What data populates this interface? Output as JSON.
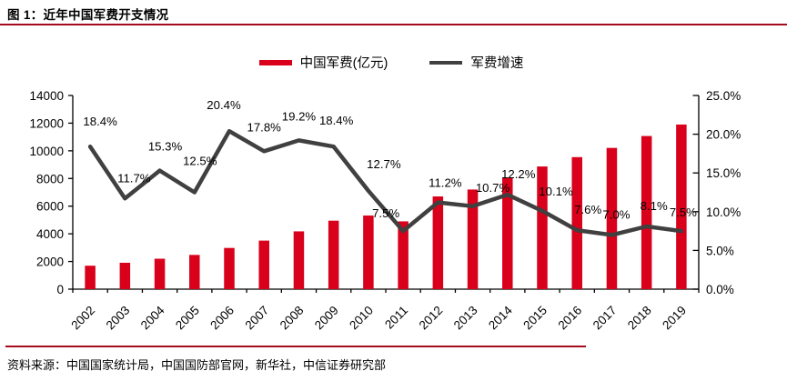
{
  "title": "图 1：近年中国军费开支情况",
  "source": "资料来源：中国国家统计局，中国国防部官网，新华社，中信证券研究部",
  "colors": {
    "bar": "#d9001b",
    "line": "#404040",
    "rule": "#a50d1e"
  },
  "legend": [
    {
      "label": "中国军费(亿元)",
      "type": "bar"
    },
    {
      "label": "军费增速",
      "type": "line"
    }
  ],
  "chart_data": {
    "type": "bar",
    "combo": "bar+line",
    "title": "近年中国军费开支情况",
    "categories": [
      "2002",
      "2003",
      "2004",
      "2005",
      "2006",
      "2007",
      "2008",
      "2009",
      "2010",
      "2011",
      "2012",
      "2013",
      "2014",
      "2015",
      "2016",
      "2017",
      "2018",
      "2019"
    ],
    "series": [
      {
        "name": "中国军费(亿元)",
        "type": "bar",
        "axis": "left",
        "values": [
          1694,
          1908,
          2200,
          2475,
          2979,
          3509,
          4178,
          4951,
          5321,
          4900,
          6703,
          7202,
          8082,
          8869,
          9544,
          10211,
          11070,
          11899
        ]
      },
      {
        "name": "军费增速",
        "type": "line",
        "axis": "right",
        "values": [
          18.4,
          11.7,
          15.3,
          12.5,
          20.4,
          17.8,
          19.2,
          18.4,
          12.7,
          7.5,
          11.2,
          10.7,
          12.2,
          10.1,
          7.6,
          7.0,
          8.1,
          7.5
        ],
        "point_labels": [
          "18.4%",
          "11.7%",
          "15.3%",
          "12.5%",
          "20.4%",
          "17.8%",
          "19.2%",
          "18.4%",
          "12.7%",
          "7.5%",
          "11.2%",
          "10.7%",
          "12.2%",
          "10.1%",
          "7.6%",
          "7.0%",
          "8.1%",
          "7.5%"
        ]
      }
    ],
    "left_axis": {
      "min": 0,
      "max": 14000,
      "step": 2000,
      "ticks": [
        "0",
        "2000",
        "4000",
        "6000",
        "8000",
        "10000",
        "12000",
        "14000"
      ]
    },
    "right_axis": {
      "min": 0,
      "max": 25,
      "step": 5,
      "ticks": [
        "0.0%",
        "5.0%",
        "10.0%",
        "15.0%",
        "20.0%",
        "25.0%"
      ]
    },
    "grid": false,
    "legend_position": "top"
  }
}
